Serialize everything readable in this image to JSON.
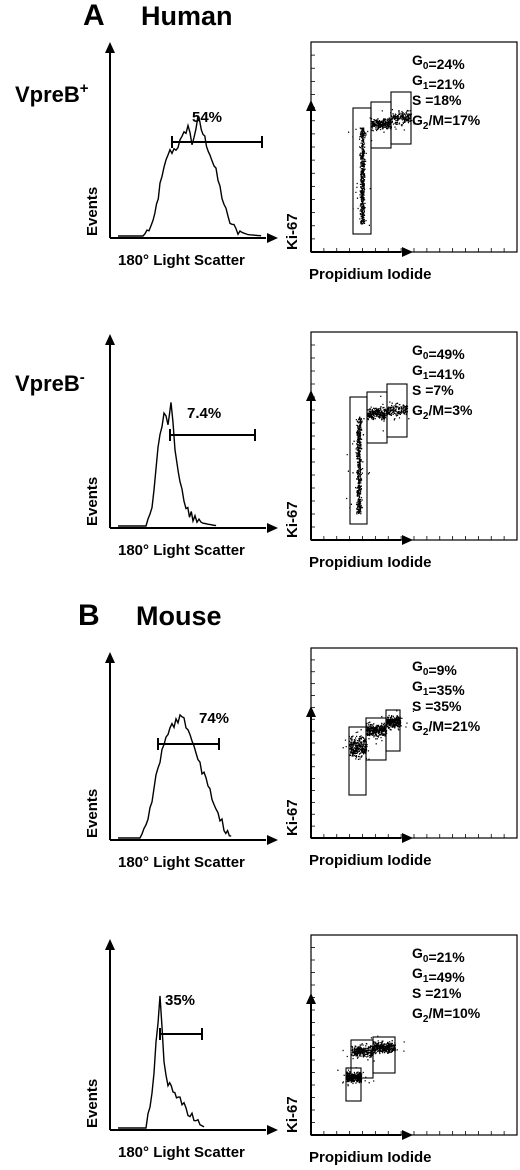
{
  "sections": [
    {
      "letter": "A",
      "species": "Human"
    },
    {
      "letter": "B",
      "species": "Mouse"
    }
  ],
  "row_labels": [
    {
      "base": "VpreB",
      "sup": "+"
    },
    {
      "base": "VpreB",
      "sup": "-"
    },
    {
      "base": "",
      "sup": ""
    },
    {
      "base": "",
      "sup": ""
    }
  ],
  "axis_labels": {
    "hist_x": "180° Light Scatter",
    "hist_y": "Events",
    "dot_x": "Propidium Iodide",
    "dot_y": "Ki-67"
  },
  "panels": [
    {
      "gate_pct": "54%",
      "phases": {
        "g0": "24%",
        "g1": "21%",
        "s": "18%",
        "g2m": "17%"
      }
    },
    {
      "gate_pct": "7.4%",
      "phases": {
        "g0": "49%",
        "g1": "41%",
        "s": "7%",
        "g2m": "3%"
      }
    },
    {
      "gate_pct": "74%",
      "phases": {
        "g0": "9%",
        "g1": "35%",
        "s": "35%",
        "g2m": "21%"
      }
    },
    {
      "gate_pct": "35%",
      "phases": {
        "g0": "21%",
        "g1": "49%",
        "s": "21%",
        "g2m": "10%"
      }
    }
  ],
  "phase_labels": {
    "g0": "G",
    "g0_sub": "0",
    "g1": "G",
    "g1_sub": "1",
    "s": "S ",
    "g2m": "G",
    "g2m_sub": "2",
    "g2m_tail": "/M"
  }
}
